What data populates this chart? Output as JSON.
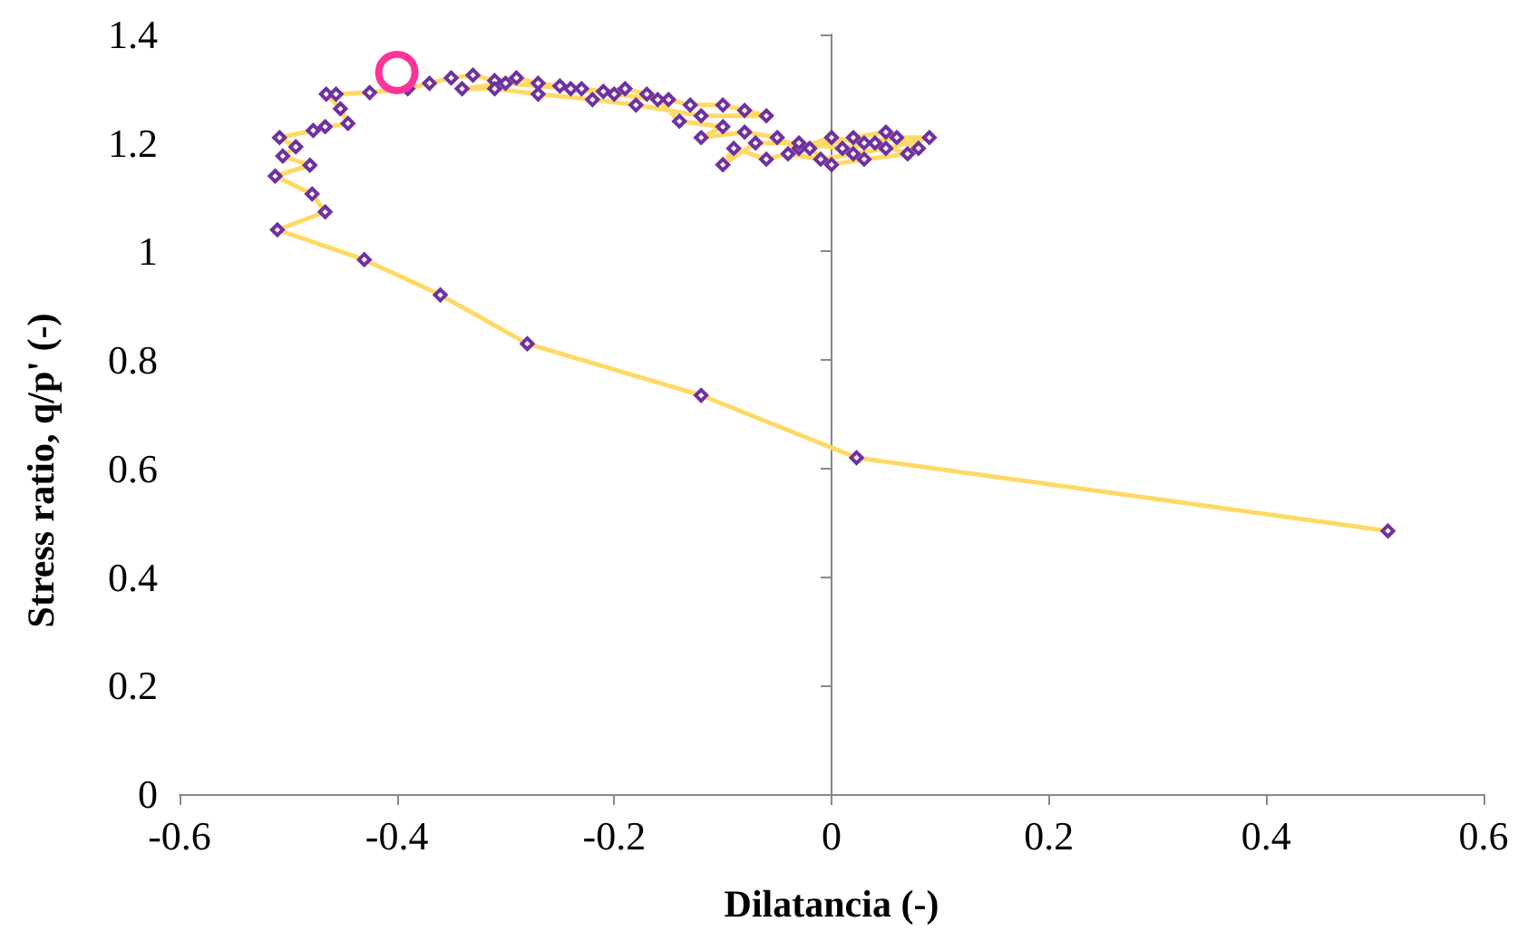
{
  "chart_data": {
    "type": "line",
    "xlabel": "Dilatancia (-)",
    "ylabel": "Stress ratio, q/p' (-)",
    "xlim": [
      -0.6,
      0.6
    ],
    "xticks": [
      -0.6,
      -0.4,
      -0.2,
      0,
      0.2,
      0.4,
      0.6
    ],
    "ylim": [
      0,
      1.4
    ],
    "yticks": [
      0,
      0.2,
      0.4,
      0.6,
      0.8,
      1,
      1.2,
      1.4
    ],
    "marker": "diamond",
    "line_style": "solid",
    "series": [
      {
        "color": "#ffd966",
        "x": [
          0.512,
          0.023,
          -0.12,
          -0.28,
          -0.36,
          -0.43,
          -0.51,
          -0.466,
          -0.478,
          -0.512,
          -0.48,
          -0.505,
          -0.493,
          -0.508,
          -0.477,
          -0.466,
          -0.445,
          -0.452,
          -0.465,
          -0.456,
          -0.425,
          -0.39,
          -0.37,
          -0.35,
          -0.33,
          -0.31,
          -0.29,
          -0.27,
          -0.25,
          -0.23,
          -0.21,
          -0.19,
          -0.17,
          -0.15,
          -0.13,
          -0.1,
          -0.08,
          -0.06,
          -0.12,
          -0.18,
          -0.22,
          -0.27,
          -0.31,
          -0.34,
          -0.3,
          -0.24,
          -0.2,
          -0.16,
          -0.14,
          -0.1,
          -0.12,
          -0.08,
          -0.05,
          -0.03,
          0,
          0.03,
          0.06,
          0.09,
          0.05,
          0.02,
          -0.01,
          -0.04,
          -0.06,
          -0.09,
          -0.1,
          -0.07,
          -0.03,
          0.01,
          0.04,
          0.07,
          0.03,
          0,
          -0.02,
          0.02,
          0.05,
          0.08
        ],
        "values": [
          0.485,
          0.62,
          0.735,
          0.83,
          0.92,
          0.985,
          1.04,
          1.073,
          1.106,
          1.139,
          1.159,
          1.176,
          1.193,
          1.21,
          1.223,
          1.23,
          1.236,
          1.263,
          1.29,
          1.29,
          1.293,
          1.3,
          1.31,
          1.32,
          1.325,
          1.315,
          1.32,
          1.31,
          1.305,
          1.3,
          1.295,
          1.3,
          1.29,
          1.28,
          1.27,
          1.27,
          1.26,
          1.25,
          1.25,
          1.27,
          1.28,
          1.29,
          1.3,
          1.3,
          1.31,
          1.3,
          1.29,
          1.28,
          1.24,
          1.23,
          1.21,
          1.22,
          1.21,
          1.19,
          1.21,
          1.2,
          1.21,
          1.21,
          1.19,
          1.18,
          1.17,
          1.18,
          1.17,
          1.19,
          1.16,
          1.2,
          1.2,
          1.19,
          1.2,
          1.18,
          1.17,
          1.16,
          1.19,
          1.21,
          1.22,
          1.19
        ]
      },
      {
        "type": "scatter",
        "color": "#ff3399",
        "marker": "circle",
        "x": [
          -0.4
        ],
        "values": [
          1.33
        ]
      }
    ]
  }
}
